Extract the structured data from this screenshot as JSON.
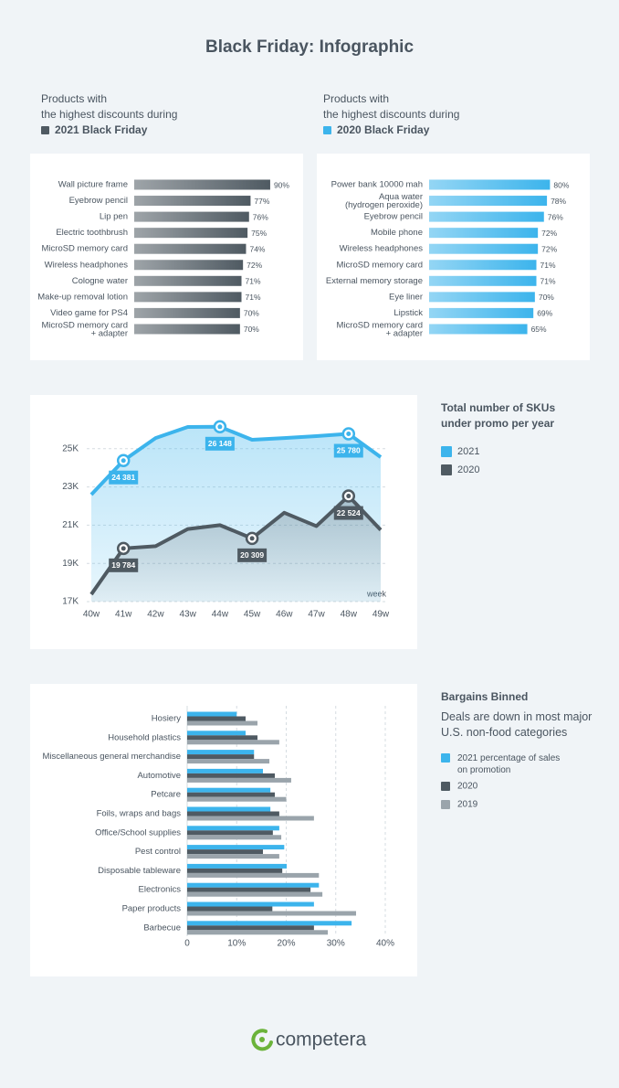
{
  "title": "Black Friday: Infographic",
  "chart_data": [
    {
      "type": "bar",
      "orientation": "horizontal",
      "subtitle": "Products with\nthe highest discounts during",
      "categories": [
        "Wall picture frame",
        "Eyebrow pencil",
        "Lip pen",
        "Electric toothbrush",
        "MicroSD memory card",
        "Wireless headphones",
        "Cologne water",
        "Make-up removal lotion",
        "Video game for PS4",
        "MicroSD memory card\n+ adapter"
      ],
      "series": [
        {
          "name": "2021 Black Friday",
          "color": "#4f5a62",
          "values": [
            90,
            77,
            76,
            75,
            74,
            72,
            71,
            71,
            70,
            70
          ],
          "value_labels": [
            "90%",
            "77%",
            "76%",
            "75%",
            "74%",
            "72%",
            "71%",
            "71%",
            "70%",
            "70%"
          ]
        }
      ]
    },
    {
      "type": "bar",
      "orientation": "horizontal",
      "subtitle": "Products with\nthe highest discounts during",
      "categories": [
        "Power bank 10000 mah",
        "Aqua water\n(hydrogen peroxide)",
        "Eyebrow pencil",
        "Mobile phone",
        "Wireless headphones",
        "MicroSD memory card",
        "External memory storage",
        "Eye liner",
        "Lipstick",
        "MicroSD memory card\n+ adapter"
      ],
      "series": [
        {
          "name": "2020 Black Friday",
          "color": "#3cb4ec",
          "values": [
            80,
            78,
            76,
            72,
            72,
            71,
            71,
            70,
            69,
            65
          ],
          "value_labels": [
            "80%",
            "78%",
            "76%",
            "72%",
            "72%",
            "71%",
            "71%",
            "70%",
            "69%",
            "65%"
          ]
        }
      ]
    },
    {
      "type": "line",
      "title": "Total number of SKUs\nunder promo per year",
      "x_label": "week",
      "categories": [
        "40w",
        "41w",
        "42w",
        "43w",
        "44w",
        "45w",
        "46w",
        "47w",
        "48w",
        "49w"
      ],
      "ylim": [
        17000,
        27000
      ],
      "yticks": [
        {
          "value": 17000,
          "label": "17K"
        },
        {
          "value": 19000,
          "label": "19K"
        },
        {
          "value": 21000,
          "label": "21K"
        },
        {
          "value": 23000,
          "label": "23K"
        },
        {
          "value": 25000,
          "label": "25K"
        }
      ],
      "grid": true,
      "series": [
        {
          "name": "2021",
          "color": "#3cb4ec",
          "values": [
            22600,
            24381,
            25560,
            26140,
            26148,
            25470,
            25560,
            25660,
            25780,
            24560
          ],
          "value_labels": [
            null,
            "24 381",
            null,
            null,
            "26 148",
            null,
            null,
            null,
            "25 780",
            null
          ]
        },
        {
          "name": "2020",
          "color": "#4f5a62",
          "values": [
            17380,
            19784,
            19900,
            20800,
            21000,
            20309,
            21650,
            20950,
            22524,
            20750
          ],
          "value_labels": [
            null,
            "19 784",
            null,
            null,
            null,
            "20 309",
            null,
            null,
            "22 524",
            null
          ]
        }
      ]
    },
    {
      "type": "bar",
      "orientation": "horizontal",
      "title": "Bargains Binned",
      "subtitle": "Deals are down in most major\nU.S. non-food categories",
      "categories": [
        "Hosiery",
        "Household plastics",
        "Miscellaneous general merchandise",
        "Automotive",
        "Petcare",
        "Foils, wraps and bags",
        "Office/School supplies",
        "Pest control",
        "Disposable tableware",
        "Electronics",
        "Paper products",
        "Barbecue"
      ],
      "xlim": [
        0,
        40
      ],
      "xticks": [
        0,
        {
          "value": 10,
          "label": "10%"
        },
        {
          "value": 20,
          "label": "20%"
        },
        {
          "value": 30,
          "label": "30%"
        },
        {
          "value": 40,
          "label": "40%"
        }
      ],
      "grid": true,
      "series": [
        {
          "name": "2021 percentage of sales\non promotion",
          "color": "#3cb4ec",
          "values": [
            10,
            11.8,
            13.5,
            15.3,
            16.8,
            16.8,
            18.6,
            19.6,
            20.1,
            26.6,
            25.6,
            33.2
          ]
        },
        {
          "name": "2020",
          "color": "#4f5a62",
          "values": [
            11.8,
            14.2,
            13.5,
            17.7,
            17.7,
            18.6,
            17.3,
            15.3,
            19.2,
            24.9,
            17.2,
            25.6
          ]
        },
        {
          "name": "2019",
          "color": "#9aa4ab",
          "values": [
            14.2,
            18.6,
            16.6,
            21,
            20,
            25.6,
            19,
            18.6,
            26.6,
            27.3,
            34.1,
            28.4
          ]
        }
      ]
    }
  ],
  "footer": {
    "logo": "competera"
  }
}
